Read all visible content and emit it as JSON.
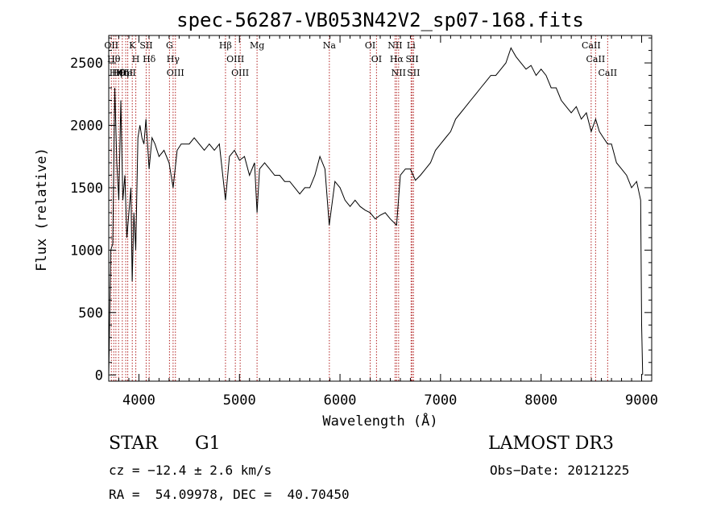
{
  "chart_data": {
    "type": "line",
    "title": "spec-56287-VB053N42V2_sp07-168.fits",
    "xlabel": "Wavelength (Å)",
    "ylabel": "Flux (relative)",
    "xlim": [
      3700,
      9100
    ],
    "ylim": [
      -50,
      2720
    ],
    "xticks": [
      4000,
      5000,
      6000,
      7000,
      8000,
      9000
    ],
    "yticks": [
      0,
      500,
      1000,
      1500,
      2000,
      2500
    ],
    "grid": false,
    "line_color": "#000000",
    "marker_color": "#b22222",
    "series": [
      {
        "x": [
          3700,
          3720,
          3740,
          3760,
          3780,
          3800,
          3820,
          3840,
          3860,
          3880,
          3900,
          3920,
          3933,
          3950,
          3968,
          3990,
          4010,
          4030,
          4050,
          4070,
          4101,
          4130,
          4160,
          4200,
          4250,
          4300,
          4340,
          4380,
          4420,
          4450,
          4500,
          4550,
          4600,
          4650,
          4700,
          4750,
          4800,
          4861,
          4900,
          4950,
          5000,
          5050,
          5100,
          5150,
          5175,
          5200,
          5250,
          5300,
          5350,
          5400,
          5450,
          5500,
          5550,
          5600,
          5650,
          5700,
          5750,
          5800,
          5850,
          5893,
          5950,
          6000,
          6050,
          6100,
          6150,
          6200,
          6250,
          6300,
          6350,
          6400,
          6450,
          6500,
          6563,
          6600,
          6650,
          6700,
          6750,
          6800,
          6850,
          6900,
          6950,
          7000,
          7050,
          7100,
          7150,
          7200,
          7250,
          7300,
          7350,
          7400,
          7450,
          7500,
          7550,
          7600,
          7650,
          7700,
          7750,
          7800,
          7850,
          7900,
          7950,
          8000,
          8050,
          8100,
          8150,
          8200,
          8250,
          8300,
          8350,
          8400,
          8450,
          8498,
          8542,
          8580,
          8620,
          8662,
          8700,
          8750,
          8800,
          8850,
          8900,
          8950,
          8990,
          9000,
          9010
        ],
        "y": [
          0,
          1000,
          1050,
          2300,
          1700,
          1400,
          2200,
          1400,
          1600,
          1100,
          1300,
          1500,
          750,
          1300,
          1000,
          1900,
          2000,
          1900,
          1850,
          2050,
          1650,
          1900,
          1850,
          1750,
          1800,
          1700,
          1500,
          1800,
          1850,
          1850,
          1850,
          1900,
          1850,
          1800,
          1850,
          1800,
          1850,
          1400,
          1750,
          1800,
          1720,
          1750,
          1600,
          1700,
          1300,
          1650,
          1700,
          1650,
          1600,
          1600,
          1550,
          1550,
          1500,
          1450,
          1500,
          1500,
          1600,
          1750,
          1650,
          1200,
          1550,
          1500,
          1400,
          1350,
          1400,
          1350,
          1320,
          1300,
          1250,
          1280,
          1300,
          1250,
          1200,
          1600,
          1650,
          1650,
          1560,
          1600,
          1650,
          1700,
          1800,
          1850,
          1900,
          1950,
          2050,
          2100,
          2150,
          2200,
          2250,
          2300,
          2350,
          2400,
          2400,
          2450,
          2500,
          2620,
          2550,
          2500,
          2450,
          2480,
          2400,
          2450,
          2400,
          2300,
          2300,
          2200,
          2150,
          2100,
          2150,
          2050,
          2100,
          1950,
          2050,
          1950,
          1900,
          1850,
          1850,
          1700,
          1650,
          1600,
          1500,
          1550,
          1400,
          400,
          0
        ]
      }
    ],
    "lines": [
      {
        "x": 3726,
        "label": "OII"
      },
      {
        "x": 3750,
        "label": "Hθ"
      },
      {
        "x": 3771,
        "label": "Hη"
      },
      {
        "x": 3798,
        "label": "Hθ"
      },
      {
        "x": 3835,
        "label": "Hη"
      },
      {
        "x": 3869,
        "label": "OII"
      },
      {
        "x": 3889,
        "label": "HeI"
      },
      {
        "x": 3934,
        "label": "K"
      },
      {
        "x": 3969,
        "label": "H"
      },
      {
        "x": 4072,
        "label": "SII"
      },
      {
        "x": 4102,
        "label": "Hδ"
      },
      {
        "x": 4304,
        "label": "G"
      },
      {
        "x": 4340,
        "label": "Hγ"
      },
      {
        "x": 4363,
        "label": "OIII"
      },
      {
        "x": 4861,
        "label": "Hβ"
      },
      {
        "x": 4959,
        "label": "OIII"
      },
      {
        "x": 5007,
        "label": "OIII"
      },
      {
        "x": 5175,
        "label": "Mg"
      },
      {
        "x": 5894,
        "label": "Na"
      },
      {
        "x": 6300,
        "label": "OI"
      },
      {
        "x": 6363,
        "label": "OI"
      },
      {
        "x": 6548,
        "label": "NII"
      },
      {
        "x": 6563,
        "label": "Hα"
      },
      {
        "x": 6583,
        "label": "NII"
      },
      {
        "x": 6707,
        "label": "Li"
      },
      {
        "x": 6717,
        "label": "SII"
      },
      {
        "x": 6731,
        "label": "SII"
      },
      {
        "x": 8498,
        "label": "CaII"
      },
      {
        "x": 8542,
        "label": "CaII"
      },
      {
        "x": 8662,
        "label": "CaII"
      }
    ]
  },
  "info": {
    "class": "STAR",
    "subclass": "G1",
    "survey": "LAMOST DR3",
    "cz": "cz = −12.4 ± 2.6 km/s",
    "obs_date": "Obs−Date: 20121225",
    "coords": "RA =  54.09978, DEC =  40.70450"
  }
}
